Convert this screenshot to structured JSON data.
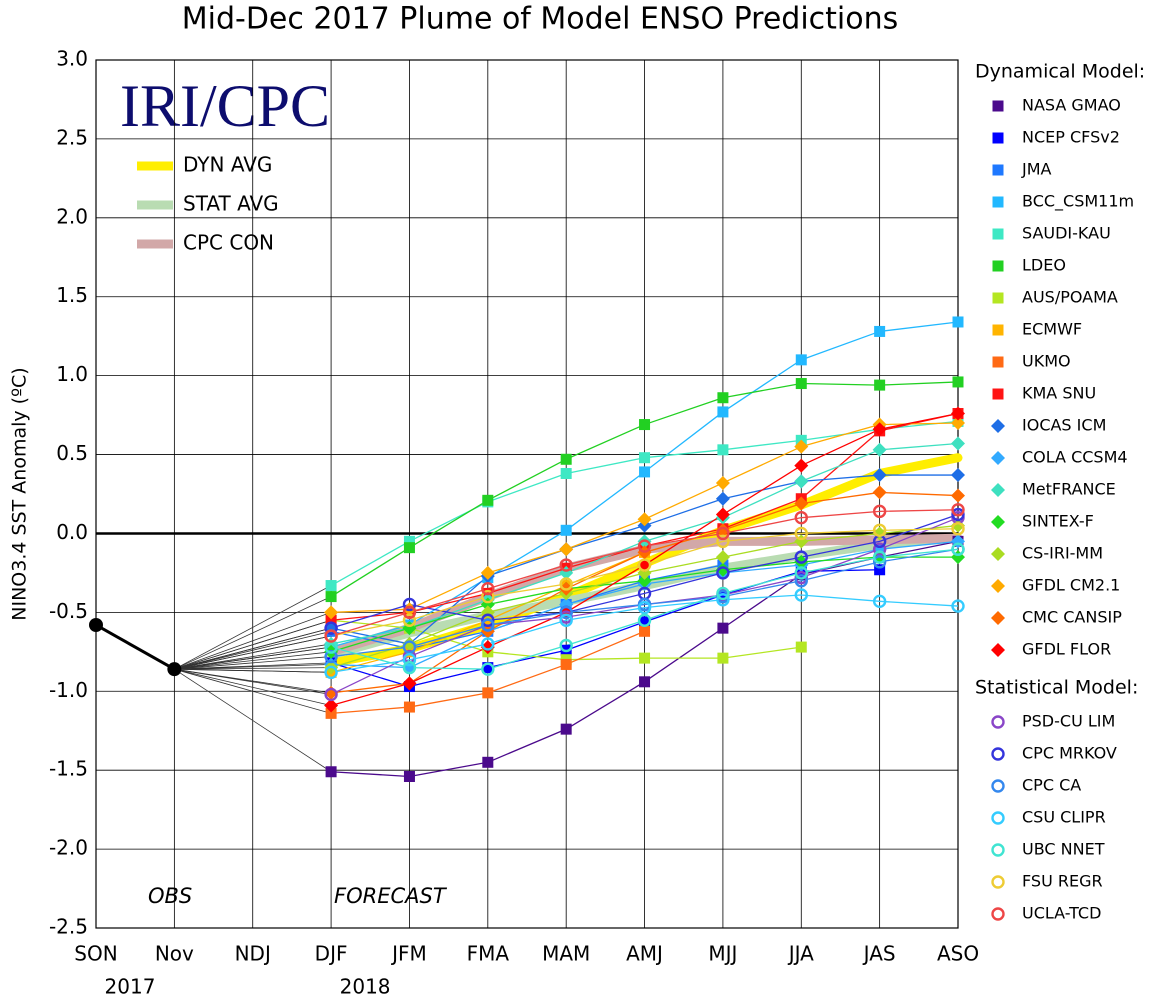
{
  "chart_data": {
    "type": "line",
    "title": "Mid-Dec 2017 Plume of Model ENSO Predictions",
    "y_label": "NINO3.4 SST Anomaly (ºC)",
    "logo": "IRI/CPC",
    "annotations": [
      "OBS",
      "FORECAST"
    ],
    "categories": [
      "SON",
      "Nov",
      "NDJ",
      "DJF",
      "JFM",
      "FMA",
      "MAM",
      "AMJ",
      "MJJ",
      "JJA",
      "JAS",
      "ASO"
    ],
    "year_labels": [
      "2017",
      null,
      null,
      "2018",
      null,
      null,
      null,
      null,
      null,
      null,
      null,
      null
    ],
    "ylim": [
      -2.5,
      3.0
    ],
    "yticks": [
      {
        "value": -2.5,
        "label": "-2.5"
      },
      {
        "value": -2.0,
        "label": "-2.0"
      },
      {
        "value": -1.5,
        "label": "-1.5"
      },
      {
        "value": -1.0,
        "label": "-1.0"
      },
      {
        "value": -0.5,
        "label": "-0.5"
      },
      {
        "value": 0,
        "label": "0.0"
      },
      {
        "value": 0.5,
        "label": "0.5"
      },
      {
        "value": 1.0,
        "label": "1.0"
      },
      {
        "value": 1.5,
        "label": "1.5"
      },
      {
        "value": 2.0,
        "label": "2.0"
      },
      {
        "value": 2.5,
        "label": "2.5"
      },
      {
        "value": 3.0,
        "label": "3.0"
      }
    ],
    "grid": true,
    "observed": {
      "color": "#000000",
      "values": [
        -0.58,
        -0.86,
        null,
        null,
        null,
        null,
        null,
        null,
        null,
        null,
        null,
        null
      ]
    },
    "legend_titles": [
      "Dynamical Model:",
      "Statistical Model:"
    ],
    "averages": [
      {
        "name": "DYN AVG",
        "color": "#ffee00",
        "values": [
          null,
          null,
          null,
          -0.82,
          -0.73,
          -0.58,
          -0.4,
          -0.19,
          0.02,
          0.18,
          0.38,
          0.48
        ]
      },
      {
        "name": "STAT AVG",
        "color": "#b9dcb2",
        "values": [
          null,
          null,
          null,
          -0.77,
          -0.63,
          -0.52,
          -0.43,
          -0.33,
          -0.22,
          -0.14,
          -0.07,
          -0.03
        ]
      },
      {
        "name": "CPC CON",
        "color": "#d2a8a8",
        "values": [
          null,
          null,
          null,
          -0.75,
          -0.6,
          -0.4,
          -0.22,
          -0.1,
          -0.05,
          -0.05,
          -0.04,
          -0.03
        ]
      }
    ],
    "series": [
      {
        "name": "NASA GMAO",
        "group": 0,
        "marker": "square",
        "color": "#4b0a8c",
        "values": [
          null,
          null,
          null,
          -1.51,
          -1.54,
          -1.45,
          -1.24,
          -0.94,
          -0.6,
          -0.26,
          -0.15,
          -0.05
        ]
      },
      {
        "name": "NCEP CFSv2",
        "group": 0,
        "marker": "square",
        "color": "#0000ff",
        "values": [
          null,
          null,
          null,
          -0.82,
          -0.97,
          -0.85,
          -0.74,
          -0.56,
          -0.39,
          -0.24,
          -0.23,
          null
        ]
      },
      {
        "name": "JMA",
        "group": 0,
        "marker": "square",
        "color": "#1e78ff",
        "values": [
          null,
          null,
          null,
          -0.62,
          -0.73,
          -0.62,
          -0.45,
          -0.3,
          -0.2,
          null,
          null,
          null
        ]
      },
      {
        "name": "BCC_CSM11m",
        "group": 0,
        "marker": "square",
        "color": "#22b8ff",
        "values": [
          null,
          null,
          null,
          -0.72,
          -0.58,
          -0.28,
          0.02,
          0.39,
          0.77,
          1.1,
          1.28,
          1.34
        ]
      },
      {
        "name": "SAUDI-KAU",
        "group": 0,
        "marker": "square",
        "color": "#3ee8c4",
        "values": [
          null,
          null,
          null,
          -0.33,
          -0.05,
          0.2,
          0.38,
          0.48,
          0.53,
          0.59,
          0.66,
          0.71
        ]
      },
      {
        "name": "LDEO",
        "group": 0,
        "marker": "square",
        "color": "#22d022",
        "values": [
          null,
          null,
          null,
          -0.4,
          -0.09,
          0.21,
          0.47,
          0.69,
          0.86,
          0.95,
          0.94,
          0.96
        ]
      },
      {
        "name": "AUS/POAMA",
        "group": 0,
        "marker": "square",
        "color": "#b4e622",
        "values": [
          null,
          null,
          null,
          -0.55,
          -0.6,
          -0.75,
          -0.8,
          -0.79,
          -0.79,
          -0.72,
          null,
          null
        ]
      },
      {
        "name": "ECMWF",
        "group": 0,
        "marker": "square",
        "color": "#ffb400",
        "values": [
          null,
          null,
          null,
          -0.88,
          -0.75,
          -0.55,
          -0.33,
          -0.12,
          0.02,
          null,
          null,
          null
        ]
      },
      {
        "name": "UKMO",
        "group": 0,
        "marker": "square",
        "color": "#ff6a14",
        "values": [
          null,
          null,
          null,
          -1.14,
          -1.1,
          -1.01,
          -0.83,
          -0.62,
          null,
          null,
          null,
          null
        ]
      },
      {
        "name": "KMA SNU",
        "group": 0,
        "marker": "square",
        "color": "#ff1414",
        "values": [
          null,
          null,
          null,
          -0.55,
          -0.5,
          -0.38,
          -0.22,
          -0.08,
          0.03,
          0.22,
          0.65,
          0.76
        ]
      },
      {
        "name": "IOCAS ICM",
        "group": 0,
        "marker": "diamond",
        "color": "#1e6ee6",
        "values": [
          null,
          null,
          null,
          -0.6,
          -0.7,
          -0.27,
          -0.1,
          0.05,
          0.22,
          0.33,
          0.37,
          0.37
        ]
      },
      {
        "name": "COLA CCSM4",
        "group": 0,
        "marker": "diamond",
        "color": "#32aaff",
        "values": [
          null,
          null,
          null,
          -0.83,
          -0.85,
          -0.62,
          -0.45,
          -0.32,
          -0.25,
          -0.2,
          -0.1,
          -0.05
        ]
      },
      {
        "name": "MetFRANCE",
        "group": 0,
        "marker": "diamond",
        "color": "#3ee0c0",
        "values": [
          null,
          null,
          null,
          -0.7,
          -0.6,
          -0.42,
          -0.25,
          -0.05,
          0.1,
          0.33,
          0.53,
          0.57
        ]
      },
      {
        "name": "SINTEX-F",
        "group": 0,
        "marker": "diamond",
        "color": "#22dc22",
        "values": [
          null,
          null,
          null,
          -0.75,
          -0.6,
          -0.45,
          -0.35,
          -0.3,
          -0.23,
          -0.18,
          -0.15,
          -0.15
        ]
      },
      {
        "name": "CS-IRI-MM",
        "group": 0,
        "marker": "diamond",
        "color": "#aadc22",
        "values": [
          null,
          null,
          null,
          -0.85,
          -0.7,
          -0.5,
          -0.38,
          -0.25,
          -0.15,
          -0.05,
          0.0,
          0.05
        ]
      },
      {
        "name": "GFDL CM2.1",
        "group": 0,
        "marker": "diamond",
        "color": "#ffaa00",
        "values": [
          null,
          null,
          null,
          -0.5,
          -0.48,
          -0.25,
          -0.1,
          0.09,
          0.32,
          0.55,
          0.69,
          0.7
        ]
      },
      {
        "name": "CMC CANSIP",
        "group": 0,
        "marker": "diamond",
        "color": "#ff6a00",
        "values": [
          null,
          null,
          null,
          -1.01,
          -0.95,
          -0.62,
          -0.35,
          -0.12,
          0.02,
          0.19,
          0.26,
          0.24
        ]
      },
      {
        "name": "GFDL FLOR",
        "group": 0,
        "marker": "diamond",
        "color": "#ff0000",
        "values": [
          null,
          null,
          null,
          -1.09,
          -0.95,
          -0.72,
          -0.5,
          -0.2,
          0.12,
          0.43,
          0.66,
          0.76
        ]
      },
      {
        "name": "PSD-CU LIM",
        "group": 1,
        "marker": "circle",
        "color": "#8a46c8",
        "values": [
          null,
          null,
          null,
          -1.02,
          -0.78,
          -0.58,
          -0.53,
          -0.45,
          -0.39,
          -0.28,
          -0.1,
          0.1
        ]
      },
      {
        "name": "CPC MRKOV",
        "group": 1,
        "marker": "circle",
        "color": "#3434dc",
        "values": [
          null,
          null,
          null,
          -0.6,
          -0.45,
          -0.55,
          -0.5,
          -0.38,
          -0.25,
          -0.15,
          -0.05,
          0.12
        ]
      },
      {
        "name": "CPC CA",
        "group": 1,
        "marker": "circle",
        "color": "#3488ee",
        "values": [
          null,
          null,
          null,
          -0.78,
          -0.72,
          -0.58,
          -0.5,
          -0.45,
          -0.4,
          -0.3,
          -0.18,
          -0.1
        ]
      },
      {
        "name": "CSU CLIPR",
        "group": 1,
        "marker": "circle",
        "color": "#34ccff",
        "values": [
          null,
          null,
          null,
          -0.88,
          -0.8,
          -0.7,
          -0.55,
          -0.47,
          -0.42,
          -0.39,
          -0.43,
          -0.46
        ]
      },
      {
        "name": "UBC NNET",
        "group": 1,
        "marker": "circle",
        "color": "#40e4d2",
        "values": [
          null,
          null,
          null,
          -0.72,
          -0.85,
          -0.86,
          -0.71,
          -0.55,
          -0.38,
          -0.25,
          -0.15,
          -0.1
        ]
      },
      {
        "name": "FSU REGR",
        "group": 1,
        "marker": "circle",
        "color": "#eecc34",
        "values": [
          null,
          null,
          null,
          -0.65,
          -0.55,
          -0.4,
          -0.32,
          -0.2,
          -0.05,
          0.0,
          0.02,
          0.03
        ]
      },
      {
        "name": "UCLA-TCD",
        "group": 1,
        "marker": "circle",
        "color": "#ee4646",
        "values": [
          null,
          null,
          null,
          -0.65,
          -0.5,
          -0.35,
          -0.2,
          -0.08,
          0.0,
          0.1,
          0.14,
          0.15
        ]
      }
    ]
  }
}
